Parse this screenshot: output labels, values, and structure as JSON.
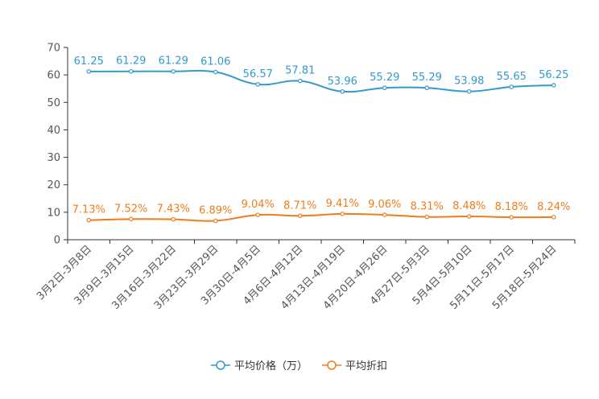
{
  "chart_data": {
    "type": "line",
    "title": "",
    "xlabel": "",
    "ylabel": "",
    "ylim": [
      0,
      70
    ],
    "yticks": [
      "0",
      "10",
      "20",
      "30",
      "40",
      "50",
      "60",
      "70"
    ],
    "categories": [
      "3月2日-3月8日",
      "3月9日-3月15日",
      "3月16日-3月22日",
      "3月23日-3月29日",
      "3月30日-4月5日",
      "4月6日-4月12日",
      "4月13日-4月19日",
      "4月20日-4月26日",
      "4月27日-5月3日",
      "5月4日-5月10日",
      "5月11日-5月17日",
      "5月18日-5月24日"
    ],
    "grid": false,
    "legend_position": "bottom-center",
    "series": [
      {
        "name": "平均价格（万）",
        "color": "#3399cc",
        "values": [
          61.25,
          61.29,
          61.29,
          61.06,
          56.57,
          57.81,
          53.96,
          55.29,
          55.29,
          53.98,
          55.65,
          56.25
        ],
        "labels": [
          "61.25",
          "61.29",
          "61.29",
          "61.06",
          "56.57",
          "57.81",
          "53.96",
          "55.29",
          "55.29",
          "53.98",
          "55.65",
          "56.25"
        ]
      },
      {
        "name": "平均折扣",
        "color": "#f07c1a",
        "values": [
          7.13,
          7.52,
          7.43,
          6.89,
          9.04,
          8.71,
          9.41,
          9.06,
          8.31,
          8.48,
          8.18,
          8.24
        ],
        "labels": [
          "7.13%",
          "7.52%",
          "7.43%",
          "6.89%",
          "9.04%",
          "8.71%",
          "9.41%",
          "9.06%",
          "8.31%",
          "8.48%",
          "8.18%",
          "8.24%"
        ]
      }
    ]
  }
}
